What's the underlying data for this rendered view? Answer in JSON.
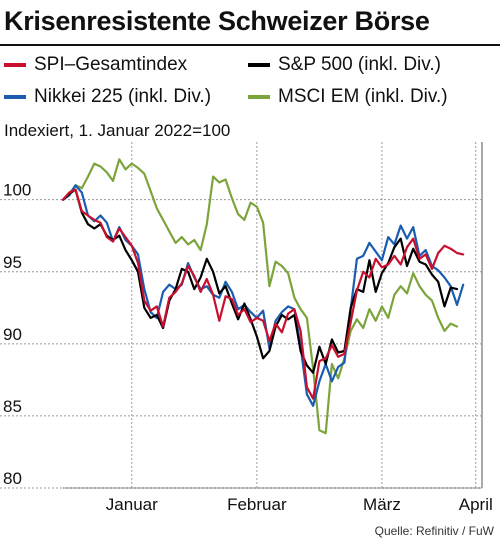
{
  "header": {
    "title": "Krisenresistente Schweizer Börse"
  },
  "chart_data": {
    "type": "line",
    "subtitle": "Indexiert, 1. Januar 2022=100",
    "ylim": [
      80,
      104
    ],
    "yticks": [
      80,
      85,
      90,
      95,
      100
    ],
    "ytick_labels": [
      "80",
      "85",
      "90",
      "95",
      "100"
    ],
    "xlim": [
      0,
      67
    ],
    "xtick_labels": [
      {
        "label": "Januar",
        "x": 11
      },
      {
        "label": "Februar",
        "x": 31
      },
      {
        "label": "März",
        "x": 51
      },
      {
        "label": "April",
        "x": 66
      }
    ],
    "grid": "dashed",
    "legend_position": "top",
    "series": [
      {
        "name": "SPI–Gesamtindex",
        "color": "#c8102e",
        "values": [
          100,
          100.5,
          100.7,
          99.2,
          98.9,
          98.6,
          98.4,
          97.4,
          97.1,
          98.0,
          97.4,
          96.8,
          95.6,
          93.0,
          92.3,
          92.6,
          91.2,
          93.2,
          93.6,
          94.2,
          95.4,
          94.7,
          93.6,
          94.5,
          93.4,
          91.6,
          93.3,
          93.1,
          92.0,
          92.4,
          91.5,
          91.8,
          91.6,
          90.2,
          91.4,
          90.8,
          92.1,
          92.4,
          90.9,
          87.0,
          86.2,
          88.8,
          89.0,
          89.9,
          89.1,
          89.3,
          91.5,
          93.7,
          95.0,
          94.6,
          95.9,
          95.3,
          95.5,
          96.1,
          95.5,
          96.7,
          97.3,
          95.9,
          96.2,
          95.2,
          96.3,
          96.8,
          96.6,
          96.3,
          96.2
        ]
      },
      {
        "name": "S&P 500 (inkl. Div.)",
        "color": "#000000",
        "values": [
          100,
          100.4,
          100.7,
          99.1,
          98.3,
          98.0,
          98.3,
          97.5,
          97.2,
          97.5,
          96.5,
          95.8,
          95.0,
          92.5,
          91.8,
          92.0,
          91.1,
          93.0,
          93.8,
          95.2,
          95.0,
          93.8,
          94.6,
          95.9,
          95.0,
          93.5,
          94.0,
          92.8,
          91.7,
          92.8,
          91.7,
          90.5,
          89.0,
          89.5,
          91.2,
          92.0,
          91.7,
          92.0,
          89.5,
          88.5,
          88.0,
          89.8,
          88.6,
          90.3,
          89.4,
          89.5,
          92.5,
          93.8,
          93.6,
          95.8,
          93.6,
          94.9,
          95.6,
          96.7,
          97.3,
          95.4,
          96.6,
          95.7,
          95.5,
          94.8,
          94.3,
          92.6,
          93.9,
          93.8
        ]
      },
      {
        "name": "Nikkei 225 (inkl. Div.)",
        "color": "#1a5cb0",
        "values": [
          100,
          100.3,
          101.0,
          100.5,
          98.9,
          98.5,
          98.9,
          98.4,
          97.1,
          98.1,
          97.2,
          96.8,
          96.2,
          93.8,
          92.2,
          91.8,
          93.6,
          94.1,
          93.8,
          94.1,
          95.6,
          94.6,
          93.8,
          94.0,
          93.4,
          93.2,
          94.3,
          93.6,
          92.4,
          92.7,
          92.2,
          91.8,
          92.3,
          89.7,
          91.6,
          92.2,
          92.6,
          92.4,
          89.8,
          86.5,
          85.7,
          87.4,
          88.6,
          87.4,
          88.4,
          88.7,
          92.4,
          95.9,
          96.1,
          97.0,
          96.4,
          95.8,
          97.4,
          96.9,
          98.2,
          97.3,
          98.1,
          96.1,
          96.5,
          95.4,
          95.1,
          94.6,
          94.0,
          92.7,
          94.1
        ]
      },
      {
        "name": "MSCI EM (inkl. Div.)",
        "color": "#7ca43c",
        "values": [
          100,
          100.4,
          101.0,
          100.8,
          101.6,
          102.5,
          102.3,
          101.9,
          101.3,
          102.8,
          102.1,
          102.5,
          102.2,
          101.8,
          100.6,
          99.4,
          98.6,
          97.8,
          97.0,
          97.4,
          96.9,
          97.2,
          96.5,
          98.3,
          101.6,
          101.2,
          101.4,
          100.1,
          99.0,
          98.6,
          99.8,
          99.5,
          98.4,
          94.0,
          95.7,
          95.4,
          94.9,
          93.2,
          92.4,
          91.8,
          88.3,
          84.0,
          83.8,
          88.6,
          87.6,
          89.0,
          90.9,
          91.7,
          91.1,
          92.4,
          91.6,
          92.6,
          91.8,
          93.4,
          94.0,
          93.5,
          94.9,
          94.0,
          93.4,
          93.0,
          91.8,
          90.9,
          91.4,
          91.2
        ]
      }
    ]
  },
  "footer": {
    "source": "Quelle: Refinitiv / FuW"
  }
}
